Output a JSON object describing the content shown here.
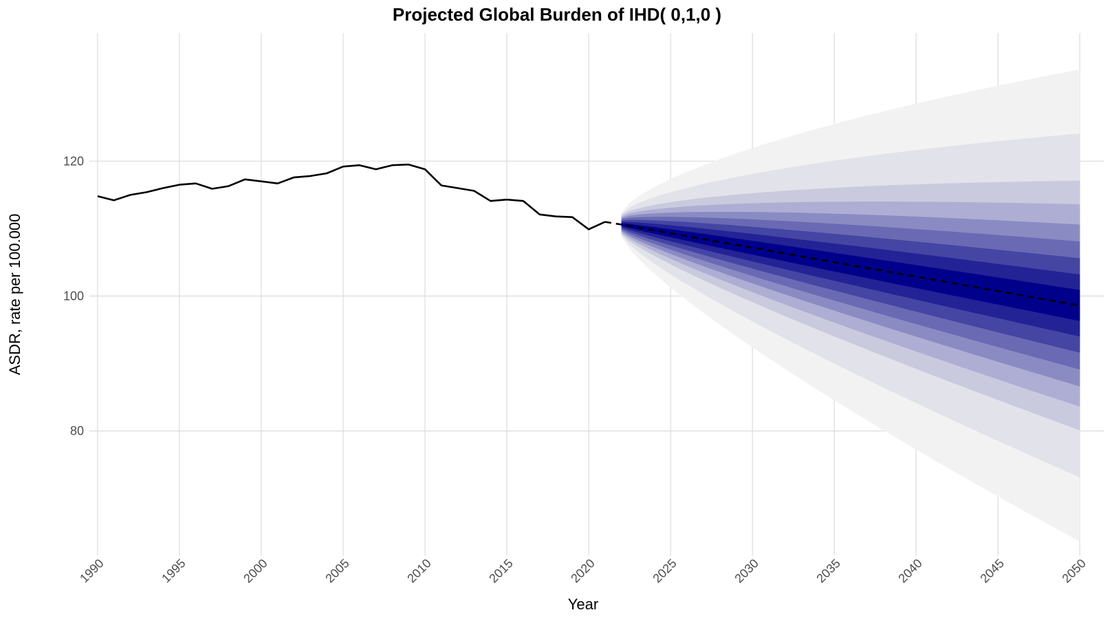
{
  "chart_data": {
    "type": "line",
    "title": "Projected Global Burden of IHD( 0,1,0 )",
    "xlabel": "Year",
    "ylabel": "ASDR, rate per 100.000",
    "xlim": [
      1989.5,
      2051.5
    ],
    "ylim": [
      61.5,
      139
    ],
    "x_ticks": [
      1990,
      1995,
      2000,
      2005,
      2010,
      2015,
      2020,
      2025,
      2030,
      2035,
      2040,
      2045,
      2050
    ],
    "y_ticks": [
      80,
      100,
      120
    ],
    "grid": true,
    "legend": "none",
    "series": [
      {
        "style": "solid",
        "color": "#000000",
        "x": [
          1990,
          1991,
          1992,
          1993,
          1994,
          1995,
          1996,
          1997,
          1998,
          1999,
          2000,
          2001,
          2002,
          2003,
          2004,
          2005,
          2006,
          2007,
          2008,
          2009,
          2010,
          2011,
          2012,
          2013,
          2014,
          2015,
          2016,
          2017,
          2018,
          2019,
          2020,
          2021
        ],
        "values": [
          114.8,
          114.2,
          115.0,
          115.4,
          116.0,
          116.5,
          116.7,
          115.9,
          116.3,
          117.3,
          117.0,
          116.7,
          117.6,
          117.8,
          118.2,
          119.2,
          119.4,
          118.8,
          119.4,
          119.5,
          118.8,
          116.4,
          116.0,
          115.6,
          114.1,
          114.3,
          114.1,
          112.1,
          111.8,
          111.7,
          109.9,
          111.0
        ]
      },
      {
        "style": "dashed",
        "color": "#000000",
        "x": [
          2021,
          2022,
          2050
        ],
        "values": [
          111.0,
          110.6,
          98.6
        ]
      }
    ],
    "fan": {
      "x_start": 2022,
      "x_end": 2050,
      "center_start": 110.6,
      "center_end": 98.6,
      "colors": [
        "#f2f2f2",
        "#e2e2ea",
        "#cacade",
        "#aeaed4",
        "#8b8bc4",
        "#6a6ab4",
        "#4545a4",
        "#232396",
        "#00008b"
      ],
      "half_width_start": [
        1.8,
        1.6,
        1.4,
        1.2,
        1.0,
        0.8,
        0.6,
        0.4,
        0.2
      ],
      "half_width_end": [
        35,
        25.5,
        18.5,
        15.0,
        12.0,
        9.5,
        7.0,
        4.6,
        2.3
      ]
    }
  }
}
